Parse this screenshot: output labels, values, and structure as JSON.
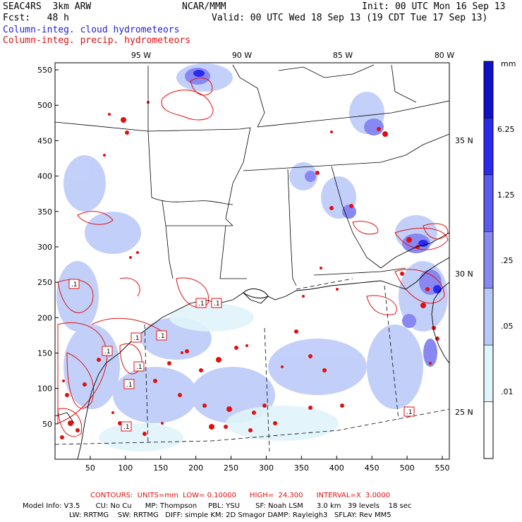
{
  "header": {
    "model": "SEAC4RS  3km ARW",
    "org": "NCAR/MMM",
    "init": "Init: 00 UTC Mon 16 Sep 13",
    "fcst": "Fcst:   48 h",
    "valid": "Valid: 00 UTC Wed 18 Sep 13 (19 CDT Tue 17 Sep 13)",
    "legend_cloud": "Column-integ. cloud hydrometeors",
    "legend_precip": "Column-integ. precip. hydrometeors"
  },
  "colors": {
    "cloud": "#2233cc",
    "precip": "#e01010",
    "border": "#000000"
  },
  "axes": {
    "x_ticks": [
      "50",
      "100",
      "150",
      "200",
      "250",
      "300",
      "350",
      "400",
      "450",
      "500",
      "550"
    ],
    "y_ticks": [
      "50",
      "100",
      "150",
      "200",
      "250",
      "300",
      "350",
      "400",
      "450",
      "500",
      "550"
    ],
    "lon_labels": [
      "95 W",
      "90 W",
      "85 W",
      "80 W"
    ],
    "lat_labels": [
      "35 N",
      "30 N",
      "25 N"
    ]
  },
  "colorbar": {
    "unit": "mm",
    "labels": [
      "6.25",
      "1.25",
      ".25",
      ".05",
      ".01"
    ],
    "colors": [
      "#1010cc",
      "#2a2aee",
      "#5a5af0",
      "#8888f2",
      "#b8c8f8",
      "#e0f4fb",
      "#ffffff"
    ]
  },
  "contour_labels": [
    ".1",
    ".1",
    ".1",
    ".1",
    ".1",
    ".1",
    ".1",
    ".1",
    ".1",
    ".1"
  ],
  "footer": {
    "contours": "CONTOURS:  UNITS=mm  LOW= 0.10000      HIGH=  24.300      INTERVAL=X  3.0000",
    "line1": "Model Info: V3.5       CU: No Cu      MP: Thompson     PBL: YSU       SF: Noah LSM      3.0 km   39 levels    18 sec",
    "line2": "LW: RRTMG    SW: RRTMG   DIFF: simple KM: 2D Smagor DAMP: Rayleigh3   SFLAY: Rev MM5"
  }
}
